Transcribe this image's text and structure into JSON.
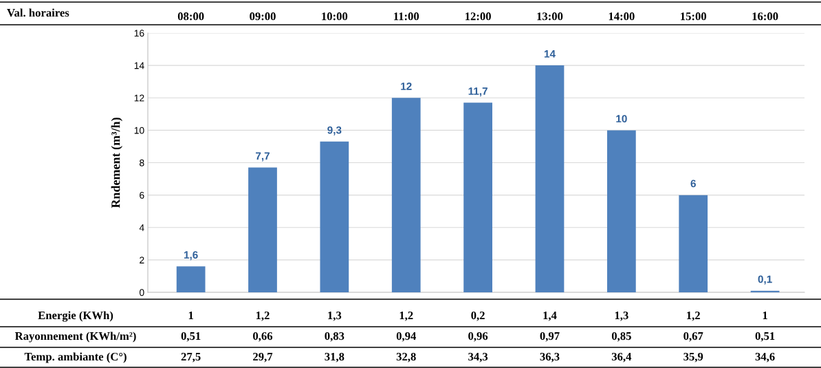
{
  "chart_data": {
    "type": "bar",
    "ylabel": "Rndement (m³/h)",
    "categories": [
      "08:00",
      "09:00",
      "10:00",
      "11:00",
      "12:00",
      "13:00",
      "14:00",
      "15:00",
      "16:00"
    ],
    "values": [
      1.6,
      7.7,
      9.3,
      12,
      11.7,
      14,
      10,
      6,
      0.1
    ],
    "value_labels": [
      "1,6",
      "7,7",
      "9,3",
      "12",
      "11,7",
      "14",
      "10",
      "6",
      "0,1"
    ],
    "color": "#4f81bd",
    "ylim": [
      0,
      16
    ],
    "yticks": [
      0,
      2,
      4,
      6,
      8,
      10,
      12,
      14,
      16
    ],
    "grid": "y",
    "annotations": [
      "Val. horaires",
      "Energie (KWh)",
      "1",
      "1,2",
      "1,3",
      "1,2",
      "0,2",
      "1,4",
      "1,3",
      "1,2",
      "1",
      "Rayonnement (KWh/m²)",
      "0,51",
      "0,66",
      "0,83",
      "0,94",
      "0,96",
      "0,97",
      "0,85",
      "0,67",
      "0,51",
      "Temp. ambiante (C°)",
      "27,5",
      "29,7",
      "31,8",
      "32,8",
      "34,3",
      "36,3",
      "36,4",
      "35,9",
      "34,6"
    ]
  }
}
